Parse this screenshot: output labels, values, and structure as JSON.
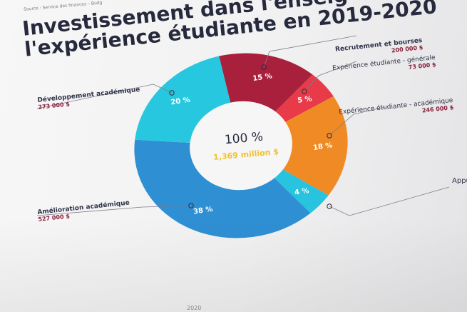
{
  "source": "Source : Service des finances – Budg",
  "title_line1": "Investissement dans l'enseig",
  "title_line2": "l'expérience étudiante en 2019-2020",
  "center": {
    "percent": "100 %",
    "amount": "1,369 million $"
  },
  "edge_text_right": "Appui",
  "bottom_text": "2020",
  "chart_data": {
    "type": "pie",
    "donut": true,
    "title": "",
    "slices": [
      {
        "name": "Recrutement et bourses",
        "amount": "200 000 $",
        "label": "15 %",
        "value": 15,
        "color": "#a8203c"
      },
      {
        "name": "Expérience étudiante - générale",
        "amount": "73 000 $",
        "label": "5 %",
        "value": 5,
        "color": "#e83a48"
      },
      {
        "name": "Expérience étudiante - académique",
        "amount": "246 000 $",
        "label": "18 %",
        "value": 18,
        "color": "#f08a24"
      },
      {
        "name": "",
        "amount": "",
        "label": "4 %",
        "value": 4,
        "color": "#27c3df"
      },
      {
        "name": "Amélioration académique",
        "amount": "527 000 $",
        "label": "38 %",
        "value": 38,
        "color": "#2f8fd3"
      },
      {
        "name": "Développement académique",
        "amount": "273 000 $",
        "label": "20 %",
        "value": 20,
        "color": "#27c8df"
      }
    ]
  }
}
